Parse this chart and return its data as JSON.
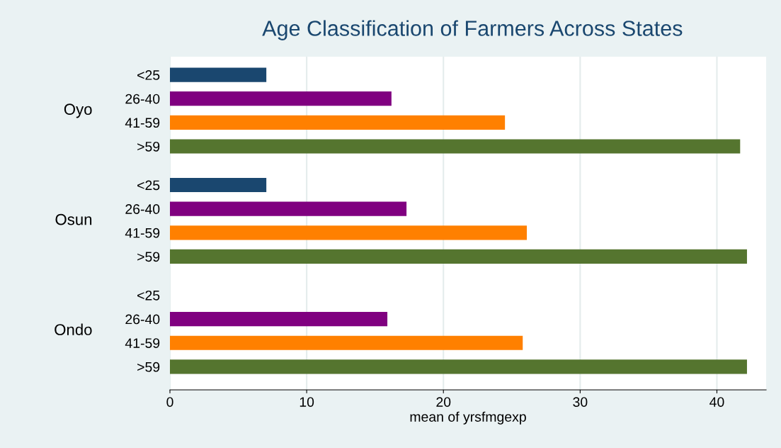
{
  "chart_data": {
    "type": "bar",
    "orientation": "horizontal",
    "title": "Age Classification of Farmers Across States",
    "xlabel": "mean of yrsfmgexp",
    "categories": [
      "Oyo",
      "Osun",
      "Ondo"
    ],
    "series": [
      {
        "name": "<25",
        "color": "#1a476f",
        "values": [
          7.05,
          7.05,
          null
        ]
      },
      {
        "name": "26-40",
        "color": "#800080",
        "values": [
          16.2,
          17.3,
          15.9
        ]
      },
      {
        "name": "41-59",
        "color": "#ff8000",
        "values": [
          24.5,
          26.1,
          25.8
        ]
      },
      {
        "name": ">59",
        "color": "#55752f",
        "values": [
          41.7,
          42.2,
          42.2
        ]
      }
    ],
    "xlim": [
      0,
      43.6
    ],
    "xticks": [
      0,
      10,
      20,
      30,
      40
    ],
    "grid": "x",
    "legend": false
  }
}
